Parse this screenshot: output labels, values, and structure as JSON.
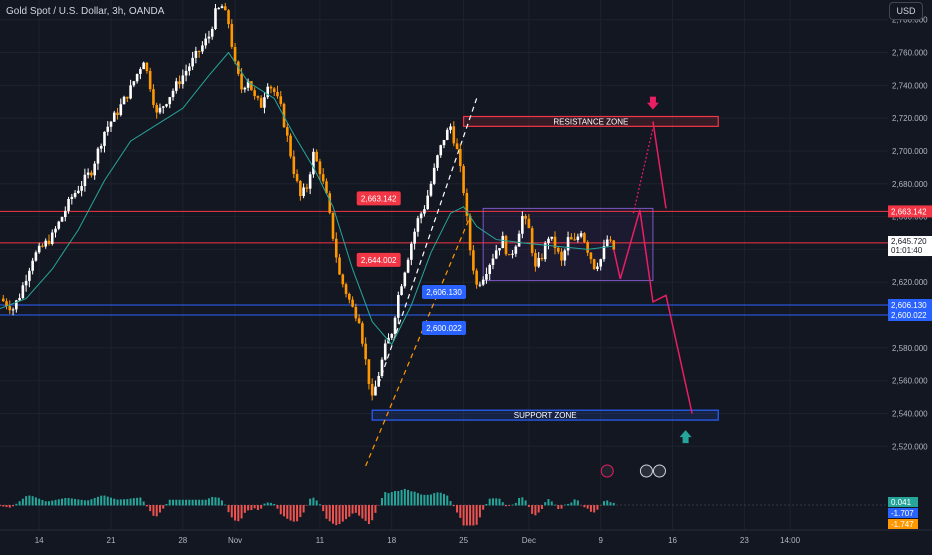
{
  "header": {
    "symbol": "Gold Spot / U.S. Dollar, 3h, OANDA",
    "currency": "USD"
  },
  "colors": {
    "background": "#131722",
    "grid": "#1e222d",
    "bull": "#ffffff",
    "bear": "#ff9800",
    "ema": "#26a69a",
    "resistance": "#f23645",
    "support": "#2962ff",
    "arrow": "#e91e63",
    "axis_text": "#b2b5be",
    "up_arrow": "#26a69a"
  },
  "chart_data": {
    "type": "candlestick",
    "title": "Gold Spot / U.S. Dollar, 3h, OANDA",
    "ylim": [
      2508,
      2792
    ],
    "x_range": [
      0,
      136
    ],
    "y_ticks": [
      "2,780.000",
      "2,760.000",
      "2,740.000",
      "2,720.000",
      "2,700.000",
      "2,680.000",
      "2,660.000",
      "2,640.000",
      "2,620.000",
      "2,600.000",
      "2,580.000",
      "2,560.000",
      "2,540.000",
      "2,520.000"
    ],
    "y_tick_values": [
      2780,
      2760,
      2740,
      2720,
      2700,
      2680,
      2660,
      2640,
      2620,
      2600,
      2580,
      2560,
      2540,
      2520
    ],
    "x_ticks": [
      {
        "label": "14",
        "x": 6
      },
      {
        "label": "21",
        "x": 17
      },
      {
        "label": "28",
        "x": 28
      },
      {
        "label": "Nov",
        "x": 36
      },
      {
        "label": "11",
        "x": 49
      },
      {
        "label": "18",
        "x": 60
      },
      {
        "label": "25",
        "x": 71
      },
      {
        "label": "Dec",
        "x": 81
      },
      {
        "label": "9",
        "x": 92
      },
      {
        "label": "16",
        "x": 103
      },
      {
        "label": "23",
        "x": 114
      },
      {
        "label": "14:00",
        "x": 121
      }
    ],
    "price_path": [
      [
        0,
        2610
      ],
      [
        2,
        2604
      ],
      [
        3,
        2612
      ],
      [
        5,
        2635
      ],
      [
        8,
        2648
      ],
      [
        11,
        2672
      ],
      [
        14,
        2688
      ],
      [
        16,
        2712
      ],
      [
        18,
        2724
      ],
      [
        20,
        2738
      ],
      [
        22,
        2756
      ],
      [
        23,
        2740
      ],
      [
        24,
        2722
      ],
      [
        26,
        2734
      ],
      [
        28,
        2746
      ],
      [
        30,
        2758
      ],
      [
        32,
        2770
      ],
      [
        33,
        2784
      ],
      [
        34,
        2788
      ],
      [
        35,
        2778
      ],
      [
        36,
        2752
      ],
      [
        37,
        2738
      ],
      [
        38,
        2744
      ],
      [
        39,
        2732
      ],
      [
        40,
        2728
      ],
      [
        41,
        2742
      ],
      [
        42,
        2736
      ],
      [
        43,
        2726
      ],
      [
        44,
        2708
      ],
      [
        45,
        2688
      ],
      [
        46,
        2672
      ],
      [
        47,
        2678
      ],
      [
        48,
        2698
      ],
      [
        49,
        2688
      ],
      [
        50,
        2672
      ],
      [
        51,
        2648
      ],
      [
        52,
        2624
      ],
      [
        53,
        2614
      ],
      [
        54,
        2604
      ],
      [
        55,
        2598
      ],
      [
        56,
        2572
      ],
      [
        57,
        2548
      ],
      [
        58,
        2564
      ],
      [
        59,
        2580
      ],
      [
        60,
        2590
      ],
      [
        61,
        2612
      ],
      [
        62,
        2628
      ],
      [
        63,
        2644
      ],
      [
        64,
        2658
      ],
      [
        65,
        2666
      ],
      [
        66,
        2680
      ],
      [
        67,
        2696
      ],
      [
        68,
        2708
      ],
      [
        69,
        2715
      ],
      [
        70,
        2700
      ],
      [
        71,
        2676
      ],
      [
        72,
        2640
      ],
      [
        73,
        2618
      ],
      [
        74,
        2624
      ],
      [
        75,
        2632
      ],
      [
        76,
        2640
      ],
      [
        77,
        2646
      ],
      [
        78,
        2634
      ],
      [
        79,
        2644
      ],
      [
        80,
        2660
      ],
      [
        81,
        2652
      ],
      [
        82,
        2628
      ],
      [
        83,
        2636
      ],
      [
        84,
        2648
      ],
      [
        85,
        2642
      ],
      [
        86,
        2632
      ],
      [
        87,
        2646
      ],
      [
        88,
        2644
      ],
      [
        89,
        2652
      ],
      [
        90,
        2640
      ],
      [
        91,
        2630
      ],
      [
        92,
        2634
      ],
      [
        93,
        2646
      ],
      [
        94,
        2640
      ]
    ],
    "ema_path": [
      [
        0,
        2604
      ],
      [
        4,
        2610
      ],
      [
        8,
        2628
      ],
      [
        12,
        2652
      ],
      [
        16,
        2682
      ],
      [
        20,
        2706
      ],
      [
        24,
        2716
      ],
      [
        28,
        2726
      ],
      [
        32,
        2746
      ],
      [
        35,
        2760
      ],
      [
        38,
        2742
      ],
      [
        42,
        2732
      ],
      [
        45,
        2710
      ],
      [
        48,
        2690
      ],
      [
        51,
        2666
      ],
      [
        54,
        2628
      ],
      [
        57,
        2596
      ],
      [
        60,
        2582
      ],
      [
        63,
        2606
      ],
      [
        66,
        2638
      ],
      [
        69,
        2662
      ],
      [
        71,
        2666
      ],
      [
        73,
        2654
      ],
      [
        76,
        2646
      ],
      [
        80,
        2644
      ],
      [
        85,
        2642
      ],
      [
        90,
        2640
      ],
      [
        94,
        2642
      ]
    ],
    "levels": [
      {
        "name": "resistance-line-2663",
        "y": 2663.142,
        "color": "#f23645",
        "label": "2,663.142",
        "callout": "2,663.142",
        "callout_x": 58
      },
      {
        "name": "resistance-line-2644",
        "y": 2644.002,
        "color": "#f23645",
        "label": "2,644.002",
        "callout": "2,644.002",
        "callout_x": 58
      },
      {
        "name": "support-line-2606",
        "y": 2606.13,
        "color": "#2962ff",
        "label": "2,606.130",
        "callout": "2,606.130",
        "callout_x": 68
      },
      {
        "name": "support-line-2600",
        "y": 2600.022,
        "color": "#2962ff",
        "label": "2,600.022",
        "callout": "2,600.022",
        "callout_x": 68
      }
    ],
    "current_price": {
      "value": "2,645.720",
      "timer": "01:01:40",
      "y": 2645.72
    },
    "zones": [
      {
        "name": "resistance-zone",
        "label": "RESISTANCE ZONE",
        "x0": 71,
        "x1": 110,
        "y0": 2715,
        "y1": 2721,
        "color": "#f23645"
      },
      {
        "name": "support-zone",
        "label": "SUPPORT ZONE",
        "x0": 57,
        "x1": 110,
        "y0": 2536,
        "y1": 2542,
        "color": "#2962ff"
      }
    ],
    "range_box": {
      "x0": 74,
      "x1": 100,
      "y0": 2621,
      "y1": 2665
    },
    "channel_lines": [
      {
        "name": "channel-upper-line",
        "from": [
          58,
          2558
        ],
        "to": [
          73,
          2732
        ],
        "color": "#ffffff"
      },
      {
        "name": "channel-lower-line",
        "from": [
          56,
          2508
        ],
        "to": [
          72,
          2660
        ],
        "color": "#ff9800"
      }
    ],
    "projection": {
      "solid": [
        [
          94,
          2640
        ],
        [
          95,
          2622
        ],
        [
          98,
          2664
        ],
        [
          100,
          2608
        ],
        [
          102,
          2612
        ],
        [
          106,
          2540
        ]
      ],
      "dotted": [
        [
          97,
          2662
        ],
        [
          100,
          2714
        ]
      ],
      "up_leg": [
        [
          100,
          2718
        ],
        [
          102,
          2665
        ]
      ]
    },
    "down_arrow_at": [
      100,
      2727
    ],
    "up_arrow_at": [
      105,
      2528
    ],
    "event_icons_x": [
      93,
      99,
      101
    ]
  },
  "oscillator": {
    "values": [
      "0.041",
      "-1.707",
      "-1.747"
    ],
    "colors": [
      "#26a69a",
      "#2962ff",
      "#ff9800"
    ]
  }
}
